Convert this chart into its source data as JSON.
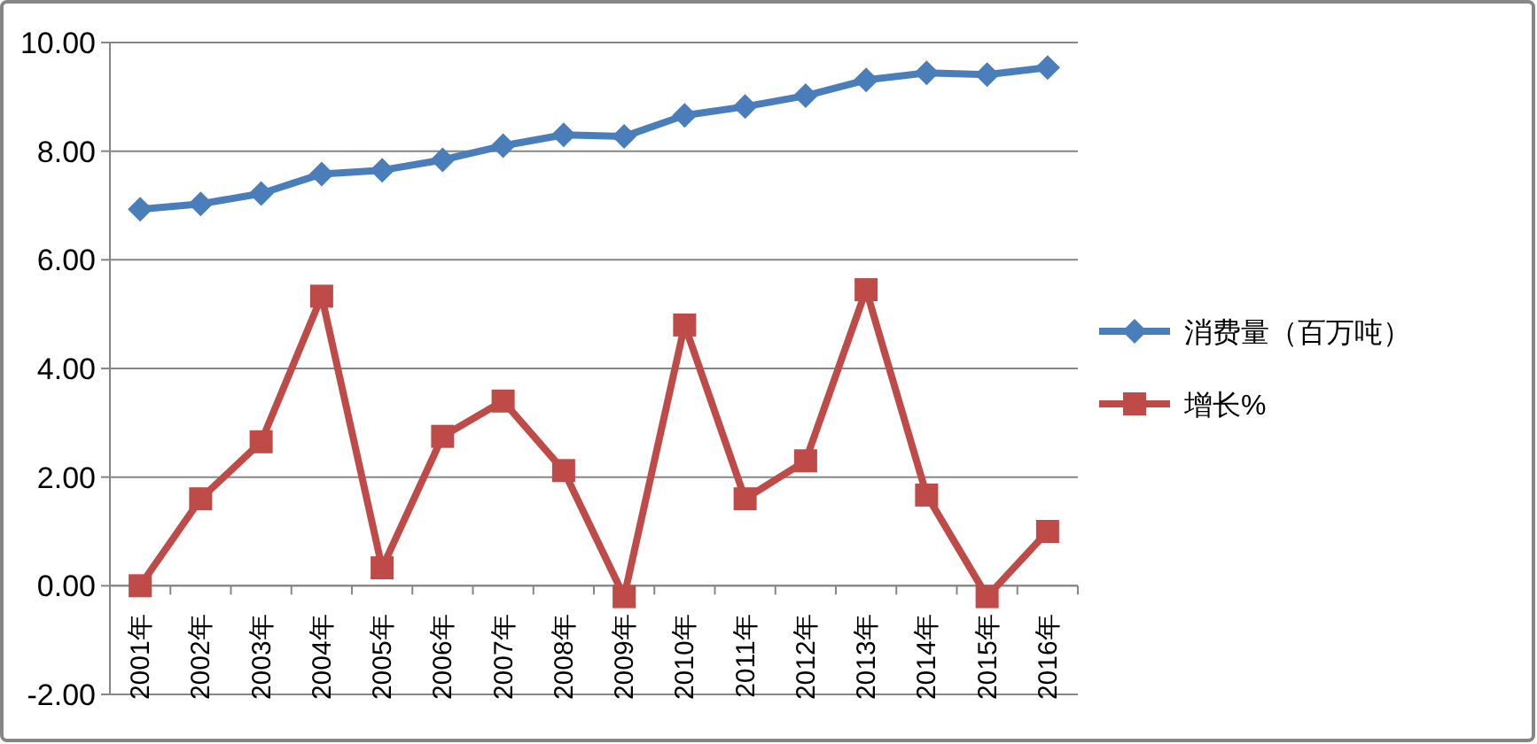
{
  "chart_data": {
    "type": "line",
    "categories": [
      "2001年",
      "2002年",
      "2003年",
      "2004年",
      "2005年",
      "2006年",
      "2007年",
      "2008年",
      "2009年",
      "2010年",
      "2011年",
      "2012年",
      "2013年",
      "2014年",
      "2015年",
      "2016年"
    ],
    "series": [
      {
        "name": "消费量（百万吨）",
        "color": "#4a7ebb",
        "marker": "diamond",
        "values": [
          6.93,
          7.03,
          7.22,
          7.58,
          7.65,
          7.84,
          8.1,
          8.3,
          8.27,
          8.66,
          8.82,
          9.02,
          9.31,
          9.44,
          9.41,
          9.54
        ]
      },
      {
        "name": "增长%",
        "color": "#be4b48",
        "marker": "square",
        "values": [
          0,
          1.6,
          2.65,
          5.33,
          0.33,
          2.75,
          3.4,
          2.12,
          -0.2,
          4.8,
          1.6,
          2.3,
          5.45,
          1.67,
          -0.2,
          1.0
        ]
      }
    ],
    "ylim": [
      -2,
      10
    ],
    "yticks": [
      {
        "value": -2,
        "label": "-2.00"
      },
      {
        "value": 0,
        "label": "0.00"
      },
      {
        "value": 2,
        "label": "2.00"
      },
      {
        "value": 4,
        "label": "4.00"
      },
      {
        "value": 6,
        "label": "6.00"
      },
      {
        "value": 8,
        "label": "8.00"
      },
      {
        "value": 10,
        "label": "10.00"
      }
    ],
    "grid": "y",
    "legend": "right"
  }
}
